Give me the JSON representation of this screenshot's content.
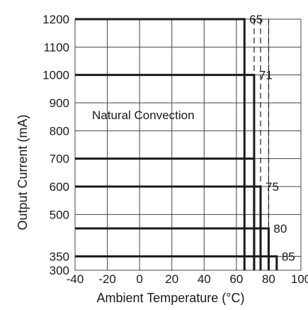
{
  "chart_data": {
    "type": "line",
    "xlabel": "Ambient Temperature (°C)",
    "ylabel": "Output Current (mA)",
    "xlim": [
      -40,
      100
    ],
    "ylim": [
      300,
      1200
    ],
    "x_ticks": [
      -40,
      -20,
      0,
      20,
      40,
      60,
      80,
      100
    ],
    "y_ticks": [
      300,
      350,
      500,
      600,
      700,
      800,
      900,
      1000,
      1100,
      1200
    ],
    "grid": true,
    "annotation": "Natural Convection",
    "series": [
      {
        "current": 1200,
        "derate_temp": 65,
        "label": "65"
      },
      {
        "current": 1000,
        "derate_temp": 71,
        "label": "71"
      },
      {
        "current": 700,
        "derate_temp": 71,
        "label": ""
      },
      {
        "current": 600,
        "derate_temp": 75,
        "label": "75"
      },
      {
        "current": 450,
        "derate_temp": 80,
        "label": "80"
      },
      {
        "current": 350,
        "derate_temp": 85,
        "label": "85"
      }
    ],
    "dashed_reference_temps": [
      65,
      71,
      75,
      80
    ],
    "colors": {
      "line": "#1a1a1a",
      "grid": "#444444",
      "background": "#ffffff"
    }
  }
}
